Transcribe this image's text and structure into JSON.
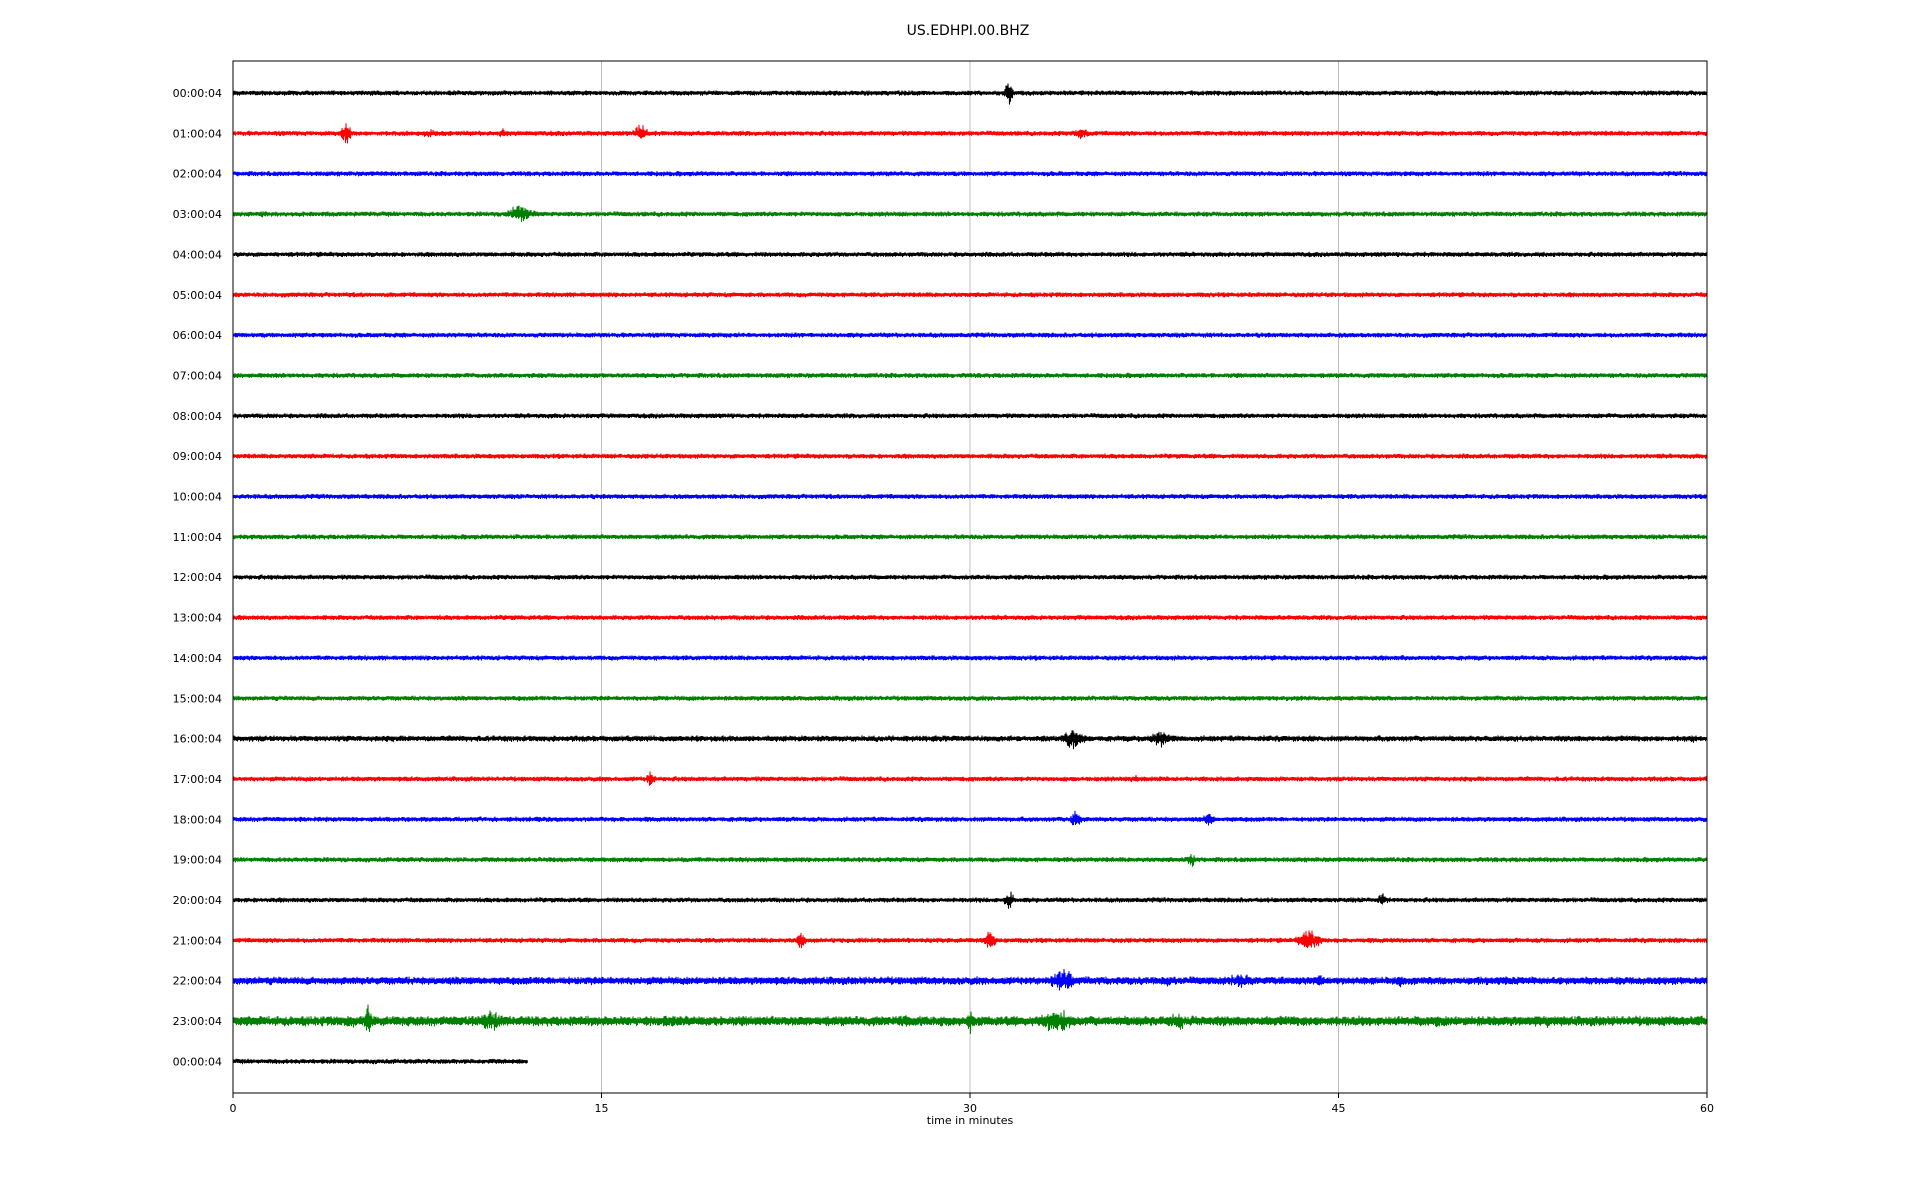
{
  "chart_data": {
    "type": "line",
    "title": "US.EDHPI.00.BHZ",
    "xlabel": "time in minutes",
    "ylabel": "",
    "xlim": [
      0,
      60
    ],
    "x_ticks": [
      0,
      15,
      30,
      45,
      60
    ],
    "x_tick_labels": [
      "0",
      "15",
      "30",
      "45",
      "60"
    ],
    "grid": "vertical",
    "colors": [
      "#000000",
      "#ff0000",
      "#0000ff",
      "#008000"
    ],
    "traces": [
      {
        "label": "00:00:04",
        "color": "#000000",
        "end": 60,
        "noise": 1.0,
        "events": [
          {
            "t": 31.6,
            "amp": 18,
            "dur": 0.2
          },
          {
            "t": 3.5,
            "amp": 4,
            "dur": 0.4
          }
        ]
      },
      {
        "label": "01:00:04",
        "color": "#ff0000",
        "end": 60,
        "noise": 1.0,
        "events": [
          {
            "t": 4.6,
            "amp": 14,
            "dur": 0.4
          },
          {
            "t": 8.0,
            "amp": 5,
            "dur": 2.5
          },
          {
            "t": 11.0,
            "amp": 6,
            "dur": 0.4
          },
          {
            "t": 16.6,
            "amp": 12,
            "dur": 0.6
          },
          {
            "t": 34.5,
            "amp": 8,
            "dur": 0.8
          }
        ]
      },
      {
        "label": "02:00:04",
        "color": "#0000ff",
        "end": 60,
        "noise": 1.0,
        "events": []
      },
      {
        "label": "03:00:04",
        "color": "#008000",
        "end": 60,
        "noise": 1.0,
        "events": [
          {
            "t": 11.7,
            "amp": 12,
            "dur": 1.4
          },
          {
            "t": 1.2,
            "amp": 4,
            "dur": 0.2
          }
        ]
      },
      {
        "label": "04:00:04",
        "color": "#000000",
        "end": 60,
        "noise": 1.0,
        "events": []
      },
      {
        "label": "05:00:04",
        "color": "#ff0000",
        "end": 60,
        "noise": 1.0,
        "events": []
      },
      {
        "label": "06:00:04",
        "color": "#0000ff",
        "end": 60,
        "noise": 1.0,
        "events": []
      },
      {
        "label": "07:00:04",
        "color": "#008000",
        "end": 60,
        "noise": 1.0,
        "events": []
      },
      {
        "label": "08:00:04",
        "color": "#000000",
        "end": 60,
        "noise": 1.0,
        "events": []
      },
      {
        "label": "09:00:04",
        "color": "#ff0000",
        "end": 60,
        "noise": 1.0,
        "events": []
      },
      {
        "label": "10:00:04",
        "color": "#0000ff",
        "end": 60,
        "noise": 1.0,
        "events": []
      },
      {
        "label": "11:00:04",
        "color": "#008000",
        "end": 60,
        "noise": 1.0,
        "events": []
      },
      {
        "label": "12:00:04",
        "color": "#000000",
        "end": 60,
        "noise": 1.0,
        "events": []
      },
      {
        "label": "13:00:04",
        "color": "#ff0000",
        "end": 60,
        "noise": 1.0,
        "events": []
      },
      {
        "label": "14:00:04",
        "color": "#0000ff",
        "end": 60,
        "noise": 1.0,
        "events": [
          {
            "t": 47.6,
            "amp": 4,
            "dur": 0.2
          }
        ]
      },
      {
        "label": "15:00:04",
        "color": "#008000",
        "end": 60,
        "noise": 1.0,
        "events": []
      },
      {
        "label": "16:00:04",
        "color": "#000000",
        "end": 60,
        "noise": 1.2,
        "events": [
          {
            "t": 34.2,
            "amp": 14,
            "dur": 1.2
          },
          {
            "t": 37.8,
            "amp": 10,
            "dur": 1.4
          },
          {
            "t": 59.4,
            "amp": 5,
            "dur": 0.6
          }
        ]
      },
      {
        "label": "17:00:04",
        "color": "#ff0000",
        "end": 60,
        "noise": 1.0,
        "events": [
          {
            "t": 17.0,
            "amp": 12,
            "dur": 0.2
          },
          {
            "t": 36.7,
            "amp": 7,
            "dur": 0.3
          }
        ]
      },
      {
        "label": "18:00:04",
        "color": "#0000ff",
        "end": 60,
        "noise": 1.0,
        "events": [
          {
            "t": 34.3,
            "amp": 12,
            "dur": 0.4
          },
          {
            "t": 39.7,
            "amp": 9,
            "dur": 0.5
          }
        ]
      },
      {
        "label": "19:00:04",
        "color": "#008000",
        "end": 60,
        "noise": 1.0,
        "events": [
          {
            "t": 39.0,
            "amp": 10,
            "dur": 0.4
          },
          {
            "t": 18.3,
            "amp": 4,
            "dur": 0.3
          }
        ]
      },
      {
        "label": "20:00:04",
        "color": "#000000",
        "end": 60,
        "noise": 1.0,
        "events": [
          {
            "t": 31.6,
            "amp": 12,
            "dur": 0.4
          },
          {
            "t": 46.8,
            "amp": 8,
            "dur": 0.4
          }
        ]
      },
      {
        "label": "21:00:04",
        "color": "#ff0000",
        "end": 60,
        "noise": 1.0,
        "events": [
          {
            "t": 23.1,
            "amp": 12,
            "dur": 0.3
          },
          {
            "t": 30.8,
            "amp": 12,
            "dur": 0.5
          },
          {
            "t": 43.8,
            "amp": 14,
            "dur": 1.2
          }
        ]
      },
      {
        "label": "22:00:04",
        "color": "#0000ff",
        "end": 60,
        "noise": 1.6,
        "events": [
          {
            "t": 33.8,
            "amp": 14,
            "dur": 1.5
          },
          {
            "t": 38.0,
            "amp": 8,
            "dur": 0.6
          },
          {
            "t": 41.0,
            "amp": 8,
            "dur": 3.0
          },
          {
            "t": 44.2,
            "amp": 10,
            "dur": 0.5
          },
          {
            "t": 47.5,
            "amp": 8,
            "dur": 0.6
          },
          {
            "t": 52.0,
            "amp": 5,
            "dur": 8.0
          }
        ]
      },
      {
        "label": "23:00:04",
        "color": "#008000",
        "end": 60,
        "noise": 2.0,
        "events": [
          {
            "t": 4.8,
            "amp": 10,
            "dur": 0.6
          },
          {
            "t": 5.5,
            "amp": 20,
            "dur": 0.2
          },
          {
            "t": 10.5,
            "amp": 12,
            "dur": 2.0
          },
          {
            "t": 18.0,
            "amp": 6,
            "dur": 4.0
          },
          {
            "t": 27.5,
            "amp": 8,
            "dur": 2.0
          },
          {
            "t": 30.0,
            "amp": 14,
            "dur": 0.3
          },
          {
            "t": 33.5,
            "amp": 16,
            "dur": 2.0
          },
          {
            "t": 38.5,
            "amp": 12,
            "dur": 1.0
          },
          {
            "t": 49.0,
            "amp": 10,
            "dur": 0.4
          },
          {
            "t": 53.5,
            "amp": 8,
            "dur": 0.6
          },
          {
            "t": 59.7,
            "amp": 8,
            "dur": 0.4
          }
        ]
      },
      {
        "label": "00:00:04",
        "color": "#000000",
        "end": 12,
        "noise": 1.0,
        "events": []
      }
    ]
  }
}
